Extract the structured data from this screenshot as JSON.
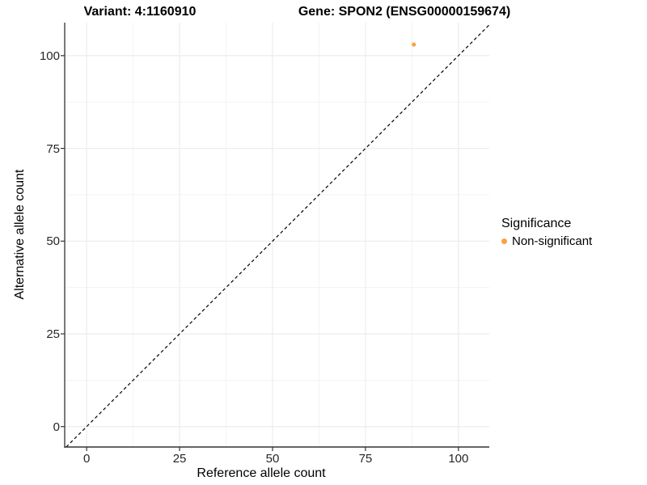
{
  "chart_data": {
    "type": "scatter",
    "title_left": "Variant: 4:1160910",
    "title_right": "Gene: SPON2 (ENSG00000159674)",
    "xlabel": "Reference allele count",
    "ylabel": "Alternative allele count",
    "xlim": [
      -5.9,
      108.3
    ],
    "ylim": [
      -5.5,
      108.9
    ],
    "x_ticks": [
      0,
      25,
      50,
      75,
      100
    ],
    "y_ticks": [
      0,
      25,
      50,
      75,
      100
    ],
    "x_minor_ticks": [
      12.5,
      37.5,
      62.5,
      87.5
    ],
    "y_minor_ticks": [
      12.5,
      37.5,
      62.5,
      87.5
    ],
    "grid": true,
    "series": [
      {
        "name": "Non-significant",
        "color": "#F9A242",
        "points": [
          {
            "x": 88,
            "y": 103
          }
        ]
      }
    ],
    "reference_line": {
      "type": "identity",
      "style": "dashed",
      "color": "#000000"
    },
    "legend": {
      "title": "Significance",
      "position": "right",
      "items": [
        {
          "label": "Non-significant",
          "color": "#F9A242"
        }
      ]
    },
    "colors": {
      "major_grid": "#ECECEC",
      "minor_grid": "#F3F3F3",
      "axis_line": "#333333",
      "tick_mark": "#333333",
      "panel_background": "#FFFFFF"
    }
  }
}
